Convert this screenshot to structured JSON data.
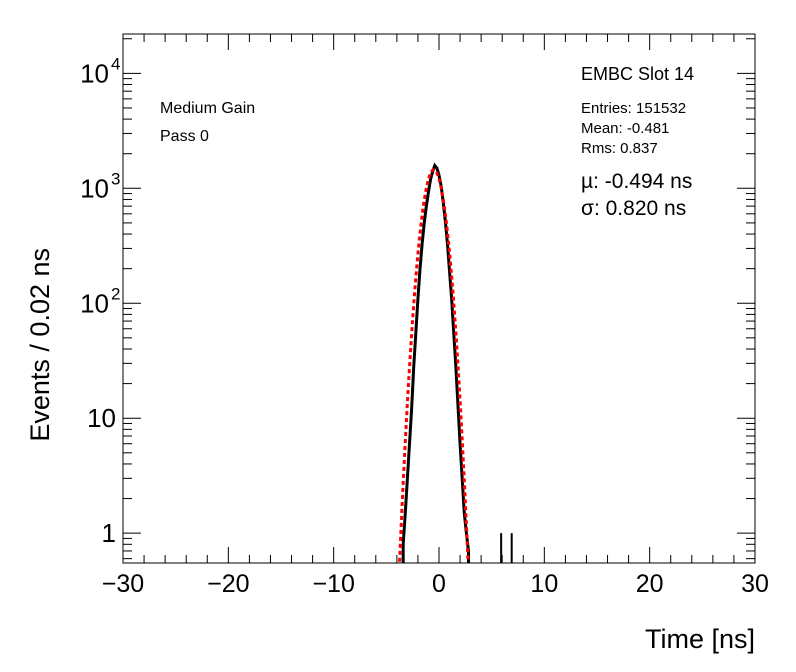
{
  "chart_data": {
    "type": "histogram",
    "xlabel": "Time [ns]",
    "ylabel": "Events / 0.02 ns",
    "xlim": [
      -30,
      30
    ],
    "ylim": [
      0.55,
      22000
    ],
    "yscale": "log",
    "x_ticks": [
      "−30",
      "−20",
      "−10",
      "0",
      "10",
      "20",
      "30"
    ],
    "x_tick_values": [
      -30,
      -20,
      -10,
      0,
      10,
      20,
      30
    ],
    "y_ticks": [
      {
        "value": 1,
        "base": "1",
        "exp": ""
      },
      {
        "value": 10,
        "base": "10",
        "exp": ""
      },
      {
        "value": 100,
        "base": "10",
        "exp": "2"
      },
      {
        "value": 1000,
        "base": "10",
        "exp": "3"
      },
      {
        "value": 10000,
        "base": "10",
        "exp": "4"
      }
    ],
    "labels": {
      "gain": "Medium Gain",
      "pass": "Pass 0",
      "title": "EMBC Slot 14",
      "entries": "Entries: 151532",
      "mean": "Mean: -0.481",
      "rms": "Rms: 0.837",
      "mu": "µ: -0.494 ns",
      "sigma": "σ: 0.820 ns"
    },
    "series": [
      {
        "kind": "histogram",
        "color": "#000000",
        "points": [
          [
            -3.4,
            0.8
          ],
          [
            -3.2,
            1.5
          ],
          [
            -3.0,
            3
          ],
          [
            -2.8,
            6
          ],
          [
            -2.6,
            12
          ],
          [
            -2.4,
            28
          ],
          [
            -2.2,
            55
          ],
          [
            -2.0,
            110
          ],
          [
            -1.8,
            200
          ],
          [
            -1.6,
            330
          ],
          [
            -1.4,
            500
          ],
          [
            -1.2,
            700
          ],
          [
            -1.0,
            930
          ],
          [
            -0.8,
            1200
          ],
          [
            -0.6,
            1400
          ],
          [
            -0.4,
            1580
          ],
          [
            -0.2,
            1500
          ],
          [
            0.0,
            1300
          ],
          [
            0.2,
            1050
          ],
          [
            0.4,
            760
          ],
          [
            0.6,
            520
          ],
          [
            0.8,
            330
          ],
          [
            1.0,
            190
          ],
          [
            1.2,
            110
          ],
          [
            1.4,
            55
          ],
          [
            1.6,
            28
          ],
          [
            1.8,
            13
          ],
          [
            2.0,
            6
          ],
          [
            2.2,
            3
          ],
          [
            2.4,
            1.5
          ],
          [
            2.6,
            1
          ],
          [
            2.8,
            0.7
          ],
          [
            5.9,
            1
          ],
          [
            6.9,
            1
          ]
        ]
      },
      {
        "kind": "gaussian-fit",
        "color": "#ff0000",
        "mu": -0.494,
        "sigma": 0.82,
        "amplitude": 1450
      }
    ]
  }
}
